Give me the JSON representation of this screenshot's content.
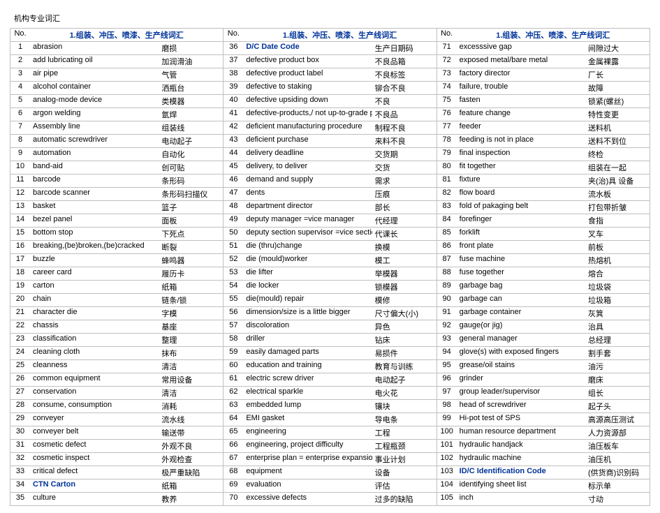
{
  "doc_title": "机构专业词汇",
  "header": {
    "no_label": "No.",
    "section": "1.组装、冲压、喷漆、生产线词汇"
  },
  "col1": [
    {
      "n": 1,
      "en": "abrasion",
      "cn": "磨损",
      "b": false
    },
    {
      "n": 2,
      "en": "add lubricating oil",
      "cn": "加润滑油",
      "b": false
    },
    {
      "n": 3,
      "en": "air pipe",
      "cn": "气管",
      "b": false
    },
    {
      "n": 4,
      "en": "alcohol container",
      "cn": "洒瓶台",
      "b": false
    },
    {
      "n": 5,
      "en": "analog-mode device",
      "cn": "类模器",
      "b": false
    },
    {
      "n": 6,
      "en": "argon welding",
      "cn": "氩焊",
      "b": false
    },
    {
      "n": 7,
      "en": "Assembly line",
      "cn": "组装线",
      "b": false
    },
    {
      "n": 8,
      "en": "automatic screwdriver",
      "cn": "电动起子",
      "b": false
    },
    {
      "n": 9,
      "en": "automation",
      "cn": "自动化",
      "b": false
    },
    {
      "n": 10,
      "en": "band-aid",
      "cn": "创可贴",
      "b": false
    },
    {
      "n": 11,
      "en": "barcode",
      "cn": "条形码",
      "b": false
    },
    {
      "n": 12,
      "en": "barcode scanner",
      "cn": "条形码扫描仪",
      "b": false
    },
    {
      "n": 13,
      "en": "basket",
      "cn": "篮子",
      "b": false
    },
    {
      "n": 14,
      "en": "bezel panel",
      "cn": "面板",
      "b": false
    },
    {
      "n": 15,
      "en": "bottom stop",
      "cn": "下死点",
      "b": false
    },
    {
      "n": 16,
      "en": "breaking,(be)broken,(be)cracked",
      "cn": "断裂",
      "b": false
    },
    {
      "n": 17,
      "en": "buzzle",
      "cn": "蜂鸣器",
      "b": false
    },
    {
      "n": 18,
      "en": "career card",
      "cn": "履历卡",
      "b": false
    },
    {
      "n": 19,
      "en": "carton",
      "cn": "纸箱",
      "b": false
    },
    {
      "n": 20,
      "en": "chain",
      "cn": "链条/锁",
      "b": false
    },
    {
      "n": 21,
      "en": "character die",
      "cn": "字模",
      "b": false
    },
    {
      "n": 22,
      "en": "chassis",
      "cn": "基座",
      "b": false
    },
    {
      "n": 23,
      "en": "classification",
      "cn": "整理",
      "b": false
    },
    {
      "n": 24,
      "en": "cleaning cloth",
      "cn": "抹布",
      "b": false
    },
    {
      "n": 25,
      "en": "cleanness",
      "cn": "清洁",
      "b": false
    },
    {
      "n": 26,
      "en": "common equipment",
      "cn": "常用设备",
      "b": false
    },
    {
      "n": 27,
      "en": "conservation",
      "cn": "清洁",
      "b": false
    },
    {
      "n": 28,
      "en": "consume, consumption",
      "cn": "消耗",
      "b": false
    },
    {
      "n": 29,
      "en": "conveyer",
      "cn": "流水线",
      "b": false
    },
    {
      "n": 30,
      "en": "conveyer belt",
      "cn": "输送带",
      "b": false
    },
    {
      "n": 31,
      "en": "cosmetic defect",
      "cn": "外观不良",
      "b": false
    },
    {
      "n": 32,
      "en": "cosmetic inspect",
      "cn": "外观检查",
      "b": false
    },
    {
      "n": 33,
      "en": "critical defect",
      "cn": "极严重缺陷",
      "b": false
    },
    {
      "n": 34,
      "en": "CTN  Carton",
      "cn": "纸箱",
      "b": true
    },
    {
      "n": 35,
      "en": "culture",
      "cn": "教养",
      "b": false
    }
  ],
  "col2": [
    {
      "n": 36,
      "en": "D/C  Date Code",
      "cn": "生产日期码",
      "b": true
    },
    {
      "n": 37,
      "en": "defective product box",
      "cn": "不良品箱",
      "b": false
    },
    {
      "n": 38,
      "en": "defective product label",
      "cn": "不良标签",
      "b": false
    },
    {
      "n": 39,
      "en": "defective to staking",
      "cn": "铆合不良",
      "b": false
    },
    {
      "n": 40,
      "en": "defective upsiding down",
      "cn": "不良",
      "b": false
    },
    {
      "n": 41,
      "en": "defective-products,/ not up-to-grade products",
      "cn": "不良品",
      "b": false
    },
    {
      "n": 42,
      "en": "deficient manufacturing procedure",
      "cn": "制程不良",
      "b": false
    },
    {
      "n": 43,
      "en": "deficient purchase",
      "cn": "来料不良",
      "b": false
    },
    {
      "n": 44,
      "en": "delivery deadline",
      "cn": "交货期",
      "b": false
    },
    {
      "n": 45,
      "en": "delivery, to deliver",
      "cn": "交货",
      "b": false
    },
    {
      "n": 46,
      "en": "demand and supply",
      "cn": "需求",
      "b": false
    },
    {
      "n": 47,
      "en": "dents",
      "cn": "压痕",
      "b": false
    },
    {
      "n": 48,
      "en": "department director",
      "cn": "部长",
      "b": false
    },
    {
      "n": 49,
      "en": "deputy manager  =vice manager",
      "cn": "代经理",
      "b": false
    },
    {
      "n": 50,
      "en": "deputy section supervisor =vice section supervisor",
      "cn": "代课长",
      "b": false
    },
    {
      "n": 51,
      "en": "die (thru)change",
      "cn": "换模",
      "b": false
    },
    {
      "n": 52,
      "en": "die (mould)worker",
      "cn": "模工",
      "b": false
    },
    {
      "n": 53,
      "en": "die lifter",
      "cn": "举模器",
      "b": false
    },
    {
      "n": 54,
      "en": "die locker",
      "cn": "锁模器",
      "b": false
    },
    {
      "n": 55,
      "en": "die(mould) repair",
      "cn": "模修",
      "b": false
    },
    {
      "n": 56,
      "en": "dimension/size is a little bigger",
      "cn": "尺寸偏大(小)",
      "b": false
    },
    {
      "n": 57,
      "en": "discoloration",
      "cn": "异色",
      "b": false
    },
    {
      "n": 58,
      "en": "driller",
      "cn": "钻床",
      "b": false
    },
    {
      "n": 59,
      "en": "easily damaged parts",
      "cn": "易损件",
      "b": false
    },
    {
      "n": 60,
      "en": "education and training",
      "cn": "教育与训练",
      "b": false
    },
    {
      "n": 61,
      "en": "electric screw driver",
      "cn": "电动起子",
      "b": false
    },
    {
      "n": 62,
      "en": "electrical sparkle",
      "cn": "电火花",
      "b": false
    },
    {
      "n": 63,
      "en": "embedded lump",
      "cn": "镶块",
      "b": false
    },
    {
      "n": 64,
      "en": "EMI gasket",
      "cn": "导电条",
      "b": false
    },
    {
      "n": 65,
      "en": "engineering",
      "cn": "工程",
      "b": false
    },
    {
      "n": 66,
      "en": "engineering, project difficulty",
      "cn": "工程瓶颈",
      "b": false
    },
    {
      "n": 67,
      "en": "enterprise plan = enterprise expansion",
      "cn": "事业计划",
      "b": false
    },
    {
      "n": 68,
      "en": "equipment",
      "cn": "设备",
      "b": false
    },
    {
      "n": 69,
      "en": "evaluation",
      "cn": "评估",
      "b": false
    },
    {
      "n": 70,
      "en": "excessive defects",
      "cn": "过多的缺陷",
      "b": false
    }
  ],
  "col3": [
    {
      "n": 71,
      "en": "excesssive gap",
      "cn": "间隙过大",
      "b": false
    },
    {
      "n": 72,
      "en": "exposed metal/bare metal",
      "cn": "金属裸露",
      "b": false
    },
    {
      "n": 73,
      "en": "factory director",
      "cn": "厂长",
      "b": false
    },
    {
      "n": 74,
      "en": "failure, trouble",
      "cn": "故障",
      "b": false
    },
    {
      "n": 75,
      "en": "fasten",
      "cn": "锁紧(螺丝)",
      "b": false
    },
    {
      "n": 76,
      "en": "feature change",
      "cn": "特性变更",
      "b": false
    },
    {
      "n": 77,
      "en": "feeder",
      "cn": "送料机",
      "b": false
    },
    {
      "n": 78,
      "en": "feeding is not in place",
      "cn": "送料不到位",
      "b": false
    },
    {
      "n": 79,
      "en": "final inspection",
      "cn": "终检",
      "b": false
    },
    {
      "n": 80,
      "en": "fit together",
      "cn": "组装在一起",
      "b": false
    },
    {
      "n": 81,
      "en": "fixture",
      "cn": "夹(治)具 设备",
      "b": false
    },
    {
      "n": 82,
      "en": "flow board",
      "cn": "流水板",
      "b": false
    },
    {
      "n": 83,
      "en": "fold of pakaging belt",
      "cn": "打包带折皱",
      "b": false
    },
    {
      "n": 84,
      "en": "forefinger",
      "cn": "食指",
      "b": false
    },
    {
      "n": 85,
      "en": "forklift",
      "cn": "叉车",
      "b": false
    },
    {
      "n": 86,
      "en": "front plate",
      "cn": "前板",
      "b": false
    },
    {
      "n": 87,
      "en": "fuse machine",
      "cn": "热熔机",
      "b": false
    },
    {
      "n": 88,
      "en": "fuse together",
      "cn": "熔合",
      "b": false
    },
    {
      "n": 89,
      "en": "garbage bag",
      "cn": "垃圾袋",
      "b": false
    },
    {
      "n": 90,
      "en": "garbage can",
      "cn": "垃圾箱",
      "b": false
    },
    {
      "n": 91,
      "en": "garbage container",
      "cn": "灰箕",
      "b": false
    },
    {
      "n": 92,
      "en": "gauge(or jig)",
      "cn": "治具",
      "b": false
    },
    {
      "n": 93,
      "en": "general manager",
      "cn": "总经理",
      "b": false
    },
    {
      "n": 94,
      "en": "glove(s) with exposed fingers",
      "cn": "割手套",
      "b": false
    },
    {
      "n": 95,
      "en": "grease/oil stains",
      "cn": "油污",
      "b": false
    },
    {
      "n": 96,
      "en": "grinder",
      "cn": "磨床",
      "b": false
    },
    {
      "n": 97,
      "en": "group leader/supervisor",
      "cn": "组长",
      "b": false
    },
    {
      "n": 98,
      "en": "head of screwdriver",
      "cn": "起子头",
      "b": false
    },
    {
      "n": 99,
      "en": "Hi-pot test of SPS",
      "cn": "高源高压测试",
      "b": false
    },
    {
      "n": 100,
      "en": "human resource department",
      "cn": "人力资源部",
      "b": false
    },
    {
      "n": 101,
      "en": "hydraulic handjack",
      "cn": "油压板车",
      "b": false
    },
    {
      "n": 102,
      "en": "hydraulic machine",
      "cn": "油压机",
      "b": false
    },
    {
      "n": 103,
      "en": "ID/C  Identification Code",
      "cn": "(供货商)识别码",
      "b": true
    },
    {
      "n": 104,
      "en": "identifying sheet list",
      "cn": "标示单",
      "b": false
    },
    {
      "n": 105,
      "en": "inch",
      "cn": "寸动",
      "b": false
    }
  ]
}
